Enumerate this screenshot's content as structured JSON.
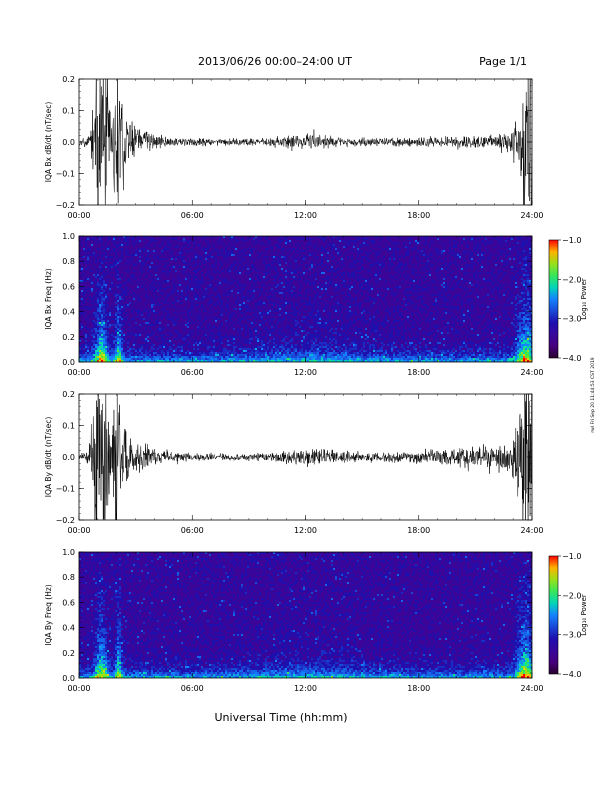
{
  "header": {
    "title": "2013/06/26  00:00–24:00 UT",
    "page": "Page 1/1"
  },
  "footer": {
    "xlabel": "Universal Time (hh:mm)",
    "side_note": "rwl Fri Sep 20 11:44:53 CST 2019"
  },
  "chart_data": [
    {
      "type": "line",
      "panel": "timeseries",
      "series": [
        {
          "name": "IQA Bx dB/dt",
          "color": "#000000"
        }
      ],
      "ylabel": "IQA Bx dB/dt (nT/sec)",
      "ylim": [
        -0.2,
        0.2
      ],
      "yticks": [
        -0.2,
        -0.1,
        0.0,
        0.1,
        0.2
      ],
      "yticklabels": [
        "−0.2",
        "−0.1",
        "0.0",
        "0.1",
        "0.2"
      ],
      "xlim": [
        0,
        24
      ],
      "xticks": [
        0,
        6,
        12,
        18,
        24
      ],
      "xticklabels": [
        "00:00",
        "06:00",
        "12:00",
        "18:00",
        "24:00"
      ],
      "activity_envelope": {
        "hours": [
          0,
          0.5,
          1.0,
          1.3,
          1.7,
          2.0,
          2.3,
          2.6,
          3.0,
          3.5,
          4.0,
          5.0,
          6.0,
          8.0,
          10.0,
          11.0,
          12.0,
          13.0,
          14.0,
          16.0,
          18.0,
          20.5,
          22.0,
          22.8,
          23.2,
          23.6,
          24.0
        ],
        "amplitude": [
          0.012,
          0.02,
          0.25,
          0.32,
          0.05,
          0.25,
          0.14,
          0.07,
          0.045,
          0.04,
          0.025,
          0.013,
          0.012,
          0.01,
          0.012,
          0.018,
          0.026,
          0.022,
          0.014,
          0.012,
          0.014,
          0.018,
          0.022,
          0.03,
          0.08,
          0.3,
          0.3
        ]
      },
      "seed": 11
    },
    {
      "type": "heatmap",
      "panel": "spectrogram",
      "ylabel": "IQA Bx Freq (Hz)",
      "ylim": [
        0,
        1.0
      ],
      "yticks": [
        0,
        0.2,
        0.4,
        0.6,
        0.8,
        1.0
      ],
      "yticklabels": [
        "0.0",
        "0.2",
        "0.4",
        "0.6",
        "0.8",
        "1.0"
      ],
      "xlim": [
        0,
        24
      ],
      "xticks": [
        0,
        6,
        12,
        18,
        24
      ],
      "xticklabels": [
        "00:00",
        "06:00",
        "12:00",
        "18:00",
        "24:00"
      ],
      "colorbar": {
        "label": "Log₁₀ Power",
        "range": [
          -4.0,
          -1.0
        ],
        "ticks": [
          -1.0,
          -2.0,
          -3.0,
          -4.0
        ],
        "ticklabels": [
          "−1.0",
          "−2.0",
          "−3.0",
          "−4.0"
        ]
      },
      "seed": 23
    },
    {
      "type": "line",
      "panel": "timeseries",
      "series": [
        {
          "name": "IQA By dB/dt",
          "color": "#000000"
        }
      ],
      "ylabel": "IQA By dB/dt (nT/sec)",
      "ylim": [
        -0.2,
        0.2
      ],
      "yticks": [
        -0.2,
        -0.1,
        0.0,
        0.1,
        0.2
      ],
      "yticklabels": [
        "−0.2",
        "−0.1",
        "0.0",
        "0.1",
        "0.2"
      ],
      "xlim": [
        0,
        24
      ],
      "xticks": [
        0,
        6,
        12,
        18,
        24
      ],
      "xticklabels": [
        "00:00",
        "06:00",
        "12:00",
        "18:00",
        "24:00"
      ],
      "activity_envelope": {
        "hours": [
          0,
          0.5,
          1.0,
          1.3,
          1.7,
          2.0,
          2.3,
          2.6,
          3.0,
          3.5,
          4.0,
          5.0,
          6.0,
          8.0,
          10.0,
          11.0,
          12.0,
          13.0,
          14.0,
          16.0,
          18.0,
          20.5,
          22.0,
          22.8,
          23.2,
          23.6,
          24.0
        ],
        "amplitude": [
          0.012,
          0.025,
          0.3,
          0.35,
          0.06,
          0.28,
          0.15,
          0.07,
          0.045,
          0.04,
          0.025,
          0.013,
          0.012,
          0.01,
          0.013,
          0.02,
          0.03,
          0.025,
          0.016,
          0.014,
          0.016,
          0.03,
          0.03,
          0.05,
          0.12,
          0.3,
          0.3
        ]
      },
      "seed": 37
    },
    {
      "type": "heatmap",
      "panel": "spectrogram",
      "ylabel": "IQA By Freq (Hz)",
      "ylim": [
        0,
        1.0
      ],
      "yticks": [
        0,
        0.2,
        0.4,
        0.6,
        0.8,
        1.0
      ],
      "yticklabels": [
        "0.0",
        "0.2",
        "0.4",
        "0.6",
        "0.8",
        "1.0"
      ],
      "xlim": [
        0,
        24
      ],
      "xticks": [
        0,
        6,
        12,
        18,
        24
      ],
      "xticklabels": [
        "00:00",
        "06:00",
        "12:00",
        "18:00",
        "24:00"
      ],
      "colorbar": {
        "label": "Log₁₀ Power",
        "range": [
          -4.0,
          -1.0
        ],
        "ticks": [
          -1.0,
          -2.0,
          -3.0,
          -4.0
        ],
        "ticklabels": [
          "−1.0",
          "−2.0",
          "−3.0",
          "−4.0"
        ]
      },
      "seed": 53
    }
  ]
}
